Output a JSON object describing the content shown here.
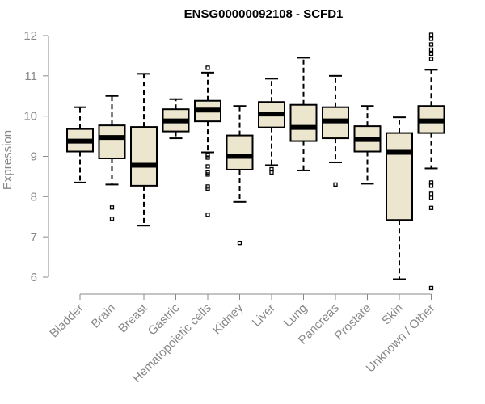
{
  "chart_data": {
    "type": "boxplot",
    "title": "ENSG00000092108 - SCFD1",
    "xlabel": "",
    "ylabel": "Expression",
    "ylim": [
      5.6,
      12.1
    ],
    "yticks": [
      6,
      7,
      8,
      9,
      10,
      11,
      12
    ],
    "grid": false,
    "box_fill": "#ede6cf",
    "categories": [
      "Bladder",
      "Brain",
      "Breast",
      "Gastric",
      "Hematopoietic cells",
      "Kidney",
      "Liver",
      "Lung",
      "Pancreas",
      "Prostate",
      "Skin",
      "Unknown / Other"
    ],
    "boxes": [
      {
        "name": "Bladder",
        "whisker_low": 8.35,
        "q1": 9.12,
        "median": 9.38,
        "q3": 9.68,
        "whisker_high": 10.22,
        "outliers": []
      },
      {
        "name": "Brain",
        "whisker_low": 8.3,
        "q1": 8.95,
        "median": 9.47,
        "q3": 9.77,
        "whisker_high": 10.5,
        "outliers": [
          7.45,
          7.73
        ]
      },
      {
        "name": "Breast",
        "whisker_low": 7.28,
        "q1": 8.27,
        "median": 8.78,
        "q3": 9.73,
        "whisker_high": 11.05,
        "outliers": []
      },
      {
        "name": "Gastric",
        "whisker_low": 9.45,
        "q1": 9.62,
        "median": 9.88,
        "q3": 10.17,
        "whisker_high": 10.42,
        "outliers": []
      },
      {
        "name": "Hematopoietic cells",
        "whisker_low": 9.1,
        "q1": 9.87,
        "median": 10.15,
        "q3": 10.38,
        "whisker_high": 11.08,
        "outliers": [
          11.2,
          9.03,
          8.97,
          8.75,
          8.6,
          8.55,
          8.25,
          8.2,
          7.55
        ]
      },
      {
        "name": "Kidney",
        "whisker_low": 7.87,
        "q1": 8.67,
        "median": 9.0,
        "q3": 9.52,
        "whisker_high": 10.25,
        "outliers": [
          6.85
        ]
      },
      {
        "name": "Liver",
        "whisker_low": 8.78,
        "q1": 9.72,
        "median": 10.05,
        "q3": 10.35,
        "whisker_high": 10.93,
        "outliers": [
          8.68,
          8.6
        ]
      },
      {
        "name": "Lung",
        "whisker_low": 8.65,
        "q1": 9.38,
        "median": 9.72,
        "q3": 10.28,
        "whisker_high": 11.45,
        "outliers": []
      },
      {
        "name": "Pancreas",
        "whisker_low": 8.85,
        "q1": 9.45,
        "median": 9.88,
        "q3": 10.22,
        "whisker_high": 11.0,
        "outliers": [
          8.3
        ]
      },
      {
        "name": "Prostate",
        "whisker_low": 8.32,
        "q1": 9.12,
        "median": 9.42,
        "q3": 9.75,
        "whisker_high": 10.25,
        "outliers": []
      },
      {
        "name": "Skin",
        "whisker_low": 5.95,
        "q1": 7.42,
        "median": 9.1,
        "q3": 9.58,
        "whisker_high": 9.97,
        "outliers": []
      },
      {
        "name": "Unknown / Other",
        "whisker_low": 8.7,
        "q1": 9.58,
        "median": 9.88,
        "q3": 10.25,
        "whisker_high": 11.15,
        "outliers": [
          12.02,
          11.92,
          11.78,
          11.65,
          11.55,
          11.42,
          8.35,
          8.27,
          8.07,
          7.97,
          7.72,
          5.73
        ]
      }
    ]
  }
}
